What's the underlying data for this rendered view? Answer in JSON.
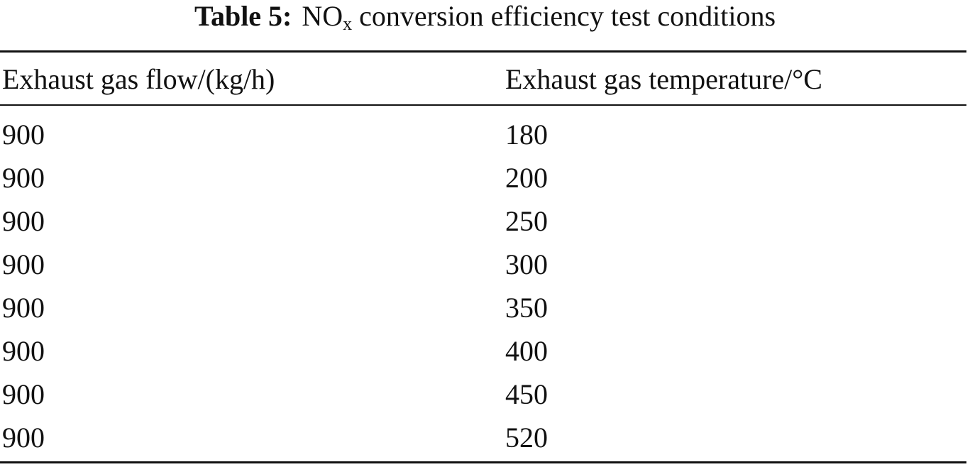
{
  "caption": {
    "label": "Table 5:",
    "title_main": "NO",
    "title_subscript": "x",
    "title_rest": "conversion efficiency test conditions"
  },
  "table": {
    "headers": [
      "Exhaust gas flow/(kg/h)",
      "Exhaust gas temperature/°C"
    ],
    "rows": [
      [
        900,
        180
      ],
      [
        900,
        200
      ],
      [
        900,
        250
      ],
      [
        900,
        300
      ],
      [
        900,
        350
      ],
      [
        900,
        400
      ],
      [
        900,
        450
      ],
      [
        900,
        520
      ]
    ]
  }
}
